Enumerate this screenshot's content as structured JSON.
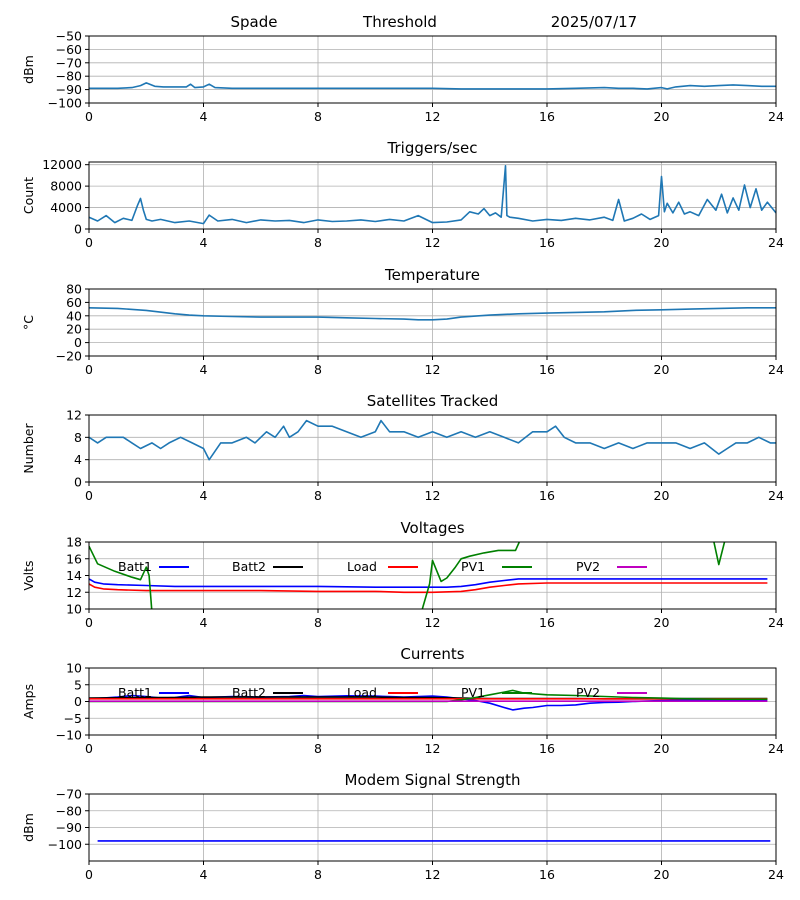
{
  "header": {
    "site": "Spade",
    "mode": "Threshold",
    "date": "2025/07/17"
  },
  "chart_data": [
    {
      "id": "noise",
      "type": "line",
      "title": "",
      "ylabel": "dBm",
      "xlim": [
        0,
        24
      ],
      "ylim": [
        -100,
        -50
      ],
      "xticks": [
        0,
        4,
        8,
        12,
        16,
        20,
        24
      ],
      "yticks": [
        -100,
        -90,
        -80,
        -70,
        -60,
        -50
      ],
      "ytick_labels": [
        "−100",
        "−90",
        "−80",
        "−70",
        "−60",
        "−50"
      ],
      "grid": true,
      "series": [
        {
          "color": "#1f77b4",
          "x": [
            0,
            0.5,
            1,
            1.5,
            1.8,
            2.0,
            2.3,
            2.6,
            3.0,
            3.4,
            3.55,
            3.7,
            4.0,
            4.2,
            4.4,
            5,
            6,
            7,
            8,
            9,
            10,
            11,
            12,
            13,
            14,
            15,
            16,
            17,
            18,
            18.5,
            19,
            19.5,
            20,
            20.2,
            20.5,
            21,
            21.5,
            22,
            22.5,
            23,
            23.5,
            24
          ],
          "y": [
            -89,
            -89,
            -89,
            -88.5,
            -87,
            -85,
            -87.5,
            -88,
            -88,
            -88,
            -86,
            -88.5,
            -88,
            -86,
            -88.5,
            -89,
            -89,
            -89,
            -89,
            -89,
            -89,
            -89,
            -89,
            -89.5,
            -89.5,
            -89.5,
            -89.5,
            -89,
            -88.5,
            -89,
            -89,
            -89.5,
            -88.5,
            -89.5,
            -88,
            -87,
            -87.5,
            -87,
            -86.5,
            -87,
            -87.5,
            -87.5
          ]
        }
      ]
    },
    {
      "id": "triggers",
      "type": "line",
      "title": "Triggers/sec",
      "ylabel": "Count",
      "xlim": [
        0,
        24
      ],
      "ylim": [
        0,
        12500
      ],
      "xticks": [
        0,
        4,
        8,
        12,
        16,
        20,
        24
      ],
      "yticks": [
        0,
        4000,
        8000,
        12000
      ],
      "ytick_labels": [
        "0",
        "4000",
        "8000",
        "12000"
      ],
      "grid": true,
      "series": [
        {
          "color": "#1f77b4",
          "x": [
            0,
            0.3,
            0.6,
            0.9,
            1.2,
            1.5,
            1.7,
            1.8,
            1.9,
            2.0,
            2.2,
            2.5,
            3.0,
            3.5,
            4.0,
            4.2,
            4.5,
            5,
            5.5,
            6,
            6.5,
            7,
            7.5,
            8,
            8.5,
            9,
            9.5,
            10,
            10.5,
            11,
            11.5,
            12,
            12.5,
            13,
            13.3,
            13.6,
            13.8,
            14.0,
            14.2,
            14.4,
            14.55,
            14.6,
            14.7,
            15.0,
            15.5,
            16,
            16.5,
            17,
            17.5,
            18,
            18.3,
            18.5,
            18.7,
            19,
            19.3,
            19.6,
            19.9,
            20.0,
            20.1,
            20.2,
            20.4,
            20.6,
            20.8,
            21,
            21.3,
            21.6,
            21.9,
            22.1,
            22.3,
            22.5,
            22.7,
            22.9,
            23.1,
            23.3,
            23.5,
            23.7,
            24
          ],
          "y": [
            2200,
            1500,
            2500,
            1200,
            2000,
            1600,
            4500,
            5700,
            3500,
            1800,
            1500,
            1800,
            1200,
            1500,
            1000,
            2600,
            1500,
            1800,
            1200,
            1700,
            1500,
            1600,
            1200,
            1700,
            1400,
            1500,
            1700,
            1400,
            1800,
            1500,
            2500,
            1200,
            1300,
            1700,
            3200,
            2800,
            3800,
            2500,
            3000,
            2200,
            11800,
            2500,
            2200,
            2000,
            1500,
            1800,
            1600,
            2000,
            1700,
            2200,
            1600,
            5500,
            1500,
            2000,
            2800,
            1800,
            2500,
            9800,
            3200,
            4800,
            3000,
            5000,
            2800,
            3200,
            2500,
            5500,
            3500,
            6500,
            3000,
            5800,
            3500,
            8200,
            4000,
            7500,
            3500,
            5000,
            3000
          ]
        }
      ]
    },
    {
      "id": "temperature",
      "type": "line",
      "title": "Temperature",
      "ylabel": "°C",
      "xlim": [
        0,
        24
      ],
      "ylim": [
        -20,
        80
      ],
      "xticks": [
        0,
        4,
        8,
        12,
        16,
        20,
        24
      ],
      "yticks": [
        -20,
        0,
        20,
        40,
        60,
        80
      ],
      "ytick_labels": [
        "−20",
        "0",
        "20",
        "40",
        "60",
        "80"
      ],
      "grid": true,
      "series": [
        {
          "color": "#1f77b4",
          "x": [
            0,
            1,
            2,
            3,
            3.5,
            4,
            5,
            6,
            7,
            8,
            9,
            10,
            11,
            11.5,
            12,
            12.5,
            13,
            14,
            15,
            16,
            17,
            18,
            19,
            20,
            21,
            22,
            23,
            24
          ],
          "y": [
            52,
            51,
            48,
            43,
            41,
            40,
            39,
            38,
            38,
            38,
            37,
            36,
            35,
            34,
            34,
            35,
            38,
            41,
            43,
            44,
            45,
            46,
            48,
            49,
            50,
            51,
            52,
            52
          ]
        }
      ]
    },
    {
      "id": "satellites",
      "type": "line",
      "title": "Satellites Tracked",
      "ylabel": "Number",
      "xlim": [
        0,
        24
      ],
      "ylim": [
        0,
        12
      ],
      "xticks": [
        0,
        4,
        8,
        12,
        16,
        20,
        24
      ],
      "yticks": [
        0,
        4,
        8,
        12
      ],
      "ytick_labels": [
        "0",
        "4",
        "8",
        "12"
      ],
      "grid": true,
      "series": [
        {
          "color": "#1f77b4",
          "x": [
            0,
            0.3,
            0.6,
            1.2,
            1.5,
            1.8,
            2.2,
            2.5,
            2.8,
            3.2,
            3.6,
            4.0,
            4.2,
            4.6,
            5.0,
            5.5,
            5.8,
            6.2,
            6.5,
            6.8,
            7.0,
            7.3,
            7.6,
            8.0,
            8.5,
            9.0,
            9.5,
            10.0,
            10.2,
            10.5,
            11.0,
            11.5,
            12.0,
            12.5,
            13.0,
            13.5,
            14.0,
            14.5,
            15.0,
            15.5,
            16.0,
            16.3,
            16.6,
            17.0,
            17.5,
            18.0,
            18.5,
            19.0,
            19.5,
            20.0,
            20.5,
            21.0,
            21.5,
            22.0,
            22.3,
            22.6,
            23.0,
            23.4,
            23.8,
            24.0
          ],
          "y": [
            8,
            7,
            8,
            8,
            7,
            6,
            7,
            6,
            7,
            8,
            7,
            6,
            4,
            7,
            7,
            8,
            7,
            9,
            8,
            10,
            8,
            9,
            11,
            10,
            10,
            9,
            8,
            9,
            11,
            9,
            9,
            8,
            9,
            8,
            9,
            8,
            9,
            8,
            7,
            9,
            9,
            10,
            8,
            7,
            7,
            6,
            7,
            6,
            7,
            7,
            7,
            6,
            7,
            5,
            6,
            7,
            7,
            8,
            7,
            7
          ]
        }
      ]
    },
    {
      "id": "voltages",
      "type": "line",
      "title": "Voltages",
      "ylabel": "Volts",
      "xlim": [
        0,
        24
      ],
      "ylim": [
        10,
        18
      ],
      "xticks": [
        0,
        4,
        8,
        12,
        16,
        20,
        24
      ],
      "yticks": [
        10,
        12,
        14,
        16,
        18
      ],
      "ytick_labels": [
        "10",
        "12",
        "14",
        "16",
        "18"
      ],
      "grid": true,
      "legend": [
        "Batt1",
        "Batt2",
        "Load",
        "PV1",
        "PV2"
      ],
      "series": [
        {
          "name": "Batt1",
          "color": "#0000ff",
          "x": [
            0,
            0.2,
            0.5,
            1,
            2,
            3,
            4,
            6,
            8,
            10,
            12,
            12.5,
            13,
            13.5,
            14,
            14.5,
            15,
            16,
            18,
            20,
            22,
            23.7
          ],
          "y": [
            13.6,
            13.2,
            13.0,
            12.9,
            12.8,
            12.7,
            12.7,
            12.7,
            12.7,
            12.6,
            12.6,
            12.6,
            12.7,
            12.9,
            13.2,
            13.4,
            13.6,
            13.6,
            13.6,
            13.6,
            13.6,
            13.6
          ]
        },
        {
          "name": "Batt2",
          "color": "#000000",
          "x": [],
          "y": []
        },
        {
          "name": "Load",
          "color": "#ff0000",
          "x": [
            0,
            0.2,
            0.5,
            1,
            2,
            3,
            4,
            6,
            8,
            10,
            11,
            12,
            13,
            13.5,
            14,
            14.5,
            15,
            16,
            18,
            20,
            22,
            23.7
          ],
          "y": [
            13.0,
            12.6,
            12.4,
            12.3,
            12.2,
            12.2,
            12.2,
            12.2,
            12.1,
            12.1,
            12.0,
            12.0,
            12.1,
            12.3,
            12.6,
            12.8,
            13.0,
            13.1,
            13.1,
            13.1,
            13.1,
            13.1
          ]
        },
        {
          "name": "PV1",
          "color": "#008000",
          "x": [
            0,
            0.3,
            0.9,
            1.5,
            1.8,
            2.0,
            2.1,
            2.2,
            11.6,
            11.9,
            12.0,
            12.3,
            12.5,
            12.8,
            13.0,
            13.3,
            13.8,
            14.3,
            14.7,
            14.9,
            15.1,
            21.8,
            22.0,
            22.2,
            22.3
          ],
          "y": [
            17.5,
            15.4,
            14.5,
            13.8,
            13.5,
            15.0,
            14.0,
            9.5,
            9.5,
            13.0,
            15.8,
            13.3,
            13.7,
            15.0,
            16.0,
            16.3,
            16.7,
            17.0,
            17.0,
            17.0,
            18.5,
            18.5,
            15.3,
            18.0,
            18.5
          ]
        },
        {
          "name": "PV2",
          "color": "#bf00bf",
          "x": [],
          "y": []
        }
      ]
    },
    {
      "id": "currents",
      "type": "line",
      "title": "Currents",
      "ylabel": "Amps",
      "xlim": [
        0,
        24
      ],
      "ylim": [
        -10,
        10
      ],
      "xticks": [
        0,
        4,
        8,
        12,
        16,
        20,
        24
      ],
      "yticks": [
        -10,
        -5,
        0,
        5,
        10
      ],
      "ytick_labels": [
        "−10",
        "−5",
        "0",
        "5",
        "10"
      ],
      "grid": true,
      "legend": [
        "Batt1",
        "Batt2",
        "Load",
        "PV1",
        "PV2"
      ],
      "series": [
        {
          "name": "Batt1",
          "color": "#0000ff",
          "x": [
            0,
            0.5,
            1,
            1.5,
            2,
            2.5,
            3,
            3.5,
            4,
            5,
            6,
            7,
            7.5,
            8,
            9,
            10,
            11,
            12,
            12.5,
            13,
            13.5,
            14,
            14.5,
            14.8,
            15.2,
            15.5,
            16,
            16.5,
            17,
            17.5,
            18,
            18.5,
            19,
            20,
            21,
            22,
            23,
            23.7
          ],
          "y": [
            0.8,
            1.0,
            1.3,
            1.8,
            1.5,
            1.0,
            1.2,
            1.8,
            1.2,
            1.5,
            1.3,
            1.5,
            1.8,
            1.5,
            1.7,
            1.6,
            1.3,
            1.6,
            1.3,
            0.8,
            0.3,
            -0.5,
            -1.8,
            -2.5,
            -2.0,
            -1.8,
            -1.2,
            -1.2,
            -1.0,
            -0.5,
            -0.3,
            -0.2,
            0.0,
            0.3,
            0.5,
            0.5,
            0.5,
            0.5
          ]
        },
        {
          "name": "Batt2",
          "color": "#000000",
          "x": [
            0,
            1,
            2,
            3,
            4,
            5,
            6,
            7,
            8,
            9,
            10,
            11,
            12,
            13,
            14,
            15,
            16,
            17,
            18,
            19,
            20,
            21,
            22,
            23,
            23.7
          ],
          "y": [
            1.0,
            1.1,
            1.2,
            1.2,
            1.3,
            1.3,
            1.3,
            1.3,
            1.3,
            1.3,
            1.3,
            1.2,
            1.2,
            1.0,
            0.9,
            0.9,
            0.9,
            0.9,
            0.8,
            0.8,
            0.8,
            0.9,
            0.9,
            0.9,
            0.9
          ]
        },
        {
          "name": "Load",
          "color": "#ff0000",
          "x": [
            0,
            2,
            4,
            6,
            8,
            10,
            12,
            14,
            16,
            18,
            20,
            22,
            23.7
          ],
          "y": [
            0.8,
            0.8,
            0.8,
            0.8,
            0.8,
            0.8,
            0.8,
            0.8,
            0.8,
            0.8,
            0.8,
            0.8,
            0.8
          ]
        },
        {
          "name": "PV1",
          "color": "#008000",
          "x": [
            0,
            0.5,
            12.5,
            13,
            13.5,
            14,
            14.5,
            14.8,
            15.2,
            16,
            17,
            18,
            19,
            20,
            21,
            22,
            23,
            23.7
          ],
          "y": [
            0,
            0,
            0,
            0.5,
            1.2,
            2.0,
            2.8,
            3.3,
            2.5,
            2.0,
            1.8,
            1.5,
            1.2,
            1.0,
            0.8,
            0.7,
            0.7,
            0.7
          ]
        },
        {
          "name": "PV2",
          "color": "#bf00bf",
          "x": [
            0,
            23.7
          ],
          "y": [
            0.1,
            0.1
          ]
        }
      ]
    },
    {
      "id": "modem",
      "type": "line",
      "title": "Modem Signal Strength",
      "ylabel": "dBm",
      "xlim": [
        0,
        24
      ],
      "ylim": [
        -110,
        -70
      ],
      "xticks": [
        0,
        4,
        8,
        12,
        16,
        20,
        24
      ],
      "yticks": [
        -100,
        -90,
        -80,
        -70
      ],
      "ytick_labels": [
        "−100",
        "−90",
        "−80",
        "−70"
      ],
      "grid": true,
      "series": [
        {
          "color": "#0000ff",
          "x": [
            0.3,
            23.8
          ],
          "y": [
            -98,
            -98
          ]
        }
      ]
    }
  ]
}
